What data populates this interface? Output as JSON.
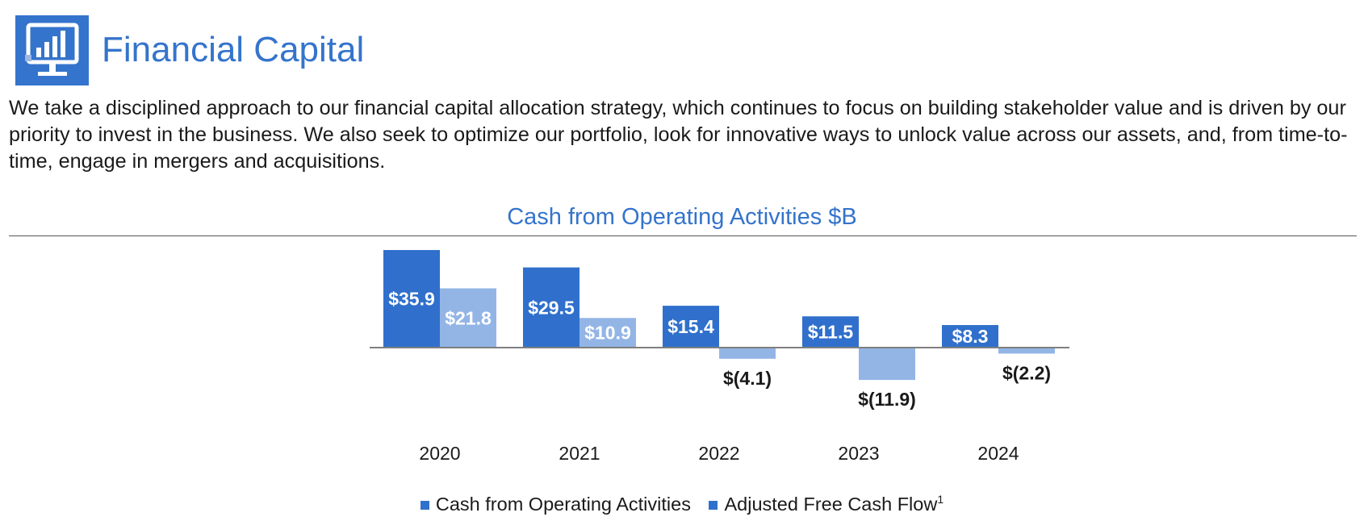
{
  "header": {
    "title": "Financial Capital",
    "icon": "monitor-chart-icon",
    "icon_color": "#3474cc"
  },
  "intro_text": "We take a disciplined approach to our financial capital allocation strategy, which continues to focus on building stakeholder value and is driven by our priority to invest in the business. We also seek to optimize our portfolio, look for innovative ways to unlock value across our assets, and, from time-to-time, engage in mergers and acquisitions.",
  "chart_data": {
    "type": "bar",
    "title": "Cash from Operating Activities $B",
    "categories": [
      "2020",
      "2021",
      "2022",
      "2023",
      "2024"
    ],
    "series": [
      {
        "name": "Cash from Operating Activities",
        "color": "#3070cc",
        "values": [
          35.9,
          29.5,
          15.4,
          11.5,
          8.3
        ],
        "labels": [
          "$35.9",
          "$29.5",
          "$15.4",
          "$11.5",
          "$8.3"
        ]
      },
      {
        "name": "Adjusted Free Cash Flow",
        "footnote": "1",
        "color": "#93b5e6",
        "values": [
          21.8,
          10.9,
          -4.1,
          -11.9,
          -2.2
        ],
        "labels": [
          "$21.8",
          "$10.9",
          "$(4.1)",
          "$(11.9)",
          "$(2.2)"
        ]
      }
    ],
    "xlabel": "",
    "ylabel": "",
    "ylim": [
      -12,
      36
    ],
    "grid": false,
    "legend_position": "bottom"
  }
}
